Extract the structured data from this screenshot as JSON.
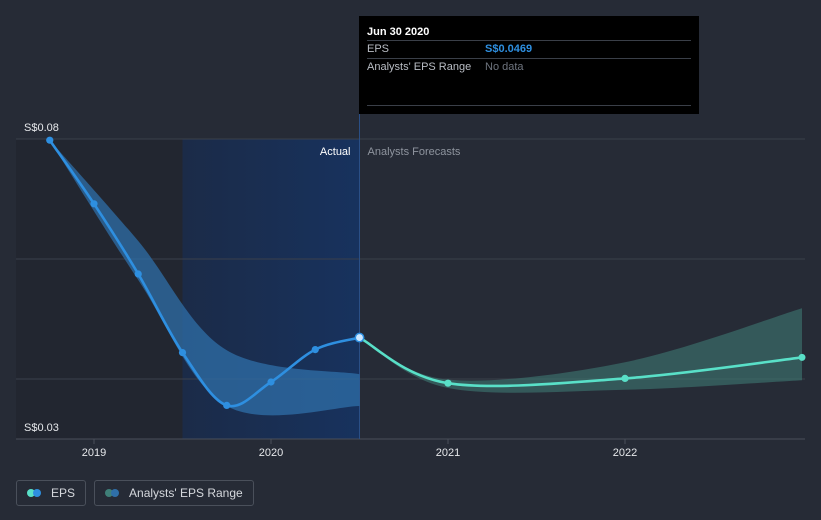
{
  "chart_data": {
    "type": "line",
    "y_axis": {
      "ylim": [
        0.03,
        0.08
      ],
      "tick_labels": [
        "S$0.08",
        "S$0.03"
      ]
    },
    "x_axis": {
      "tick_labels": [
        "2019",
        "2020",
        "2021",
        "2022"
      ]
    },
    "region_labels": {
      "actual": "Actual",
      "forecast": "Analysts Forecasts"
    },
    "series": [
      {
        "name": "EPS (actual)",
        "color": "#2e8fe0",
        "points": [
          {
            "x": 2018.75,
            "y": 0.0798
          },
          {
            "x": 2019.0,
            "y": 0.0692
          },
          {
            "x": 2019.25,
            "y": 0.0575
          },
          {
            "x": 2019.5,
            "y": 0.0444
          },
          {
            "x": 2019.75,
            "y": 0.0356
          },
          {
            "x": 2020.0,
            "y": 0.0395
          },
          {
            "x": 2020.25,
            "y": 0.0449
          },
          {
            "x": 2020.5,
            "y": 0.0469
          }
        ]
      },
      {
        "name": "EPS (forecast)",
        "color": "#59e0c8",
        "points": [
          {
            "x": 2020.5,
            "y": 0.0469
          },
          {
            "x": 2021.0,
            "y": 0.0393
          },
          {
            "x": 2022.0,
            "y": 0.0401
          },
          {
            "x": 2023.0,
            "y": 0.0436
          }
        ]
      }
    ],
    "historical_range": {
      "color": "#2f6fa8",
      "upper": [
        {
          "x": 2018.75,
          "y": 0.0798
        },
        {
          "x": 2019.25,
          "y": 0.063
        },
        {
          "x": 2019.75,
          "y": 0.0448
        },
        {
          "x": 2020.5,
          "y": 0.0408
        }
      ],
      "lower": [
        {
          "x": 2018.75,
          "y": 0.0798
        },
        {
          "x": 2019.25,
          "y": 0.0565
        },
        {
          "x": 2019.75,
          "y": 0.0355
        },
        {
          "x": 2020.5,
          "y": 0.0355
        }
      ]
    },
    "forecast_range": {
      "color": "#3f7f78",
      "upper": [
        {
          "x": 2020.5,
          "y": 0.0469
        },
        {
          "x": 2021.0,
          "y": 0.0399
        },
        {
          "x": 2022.0,
          "y": 0.0428
        },
        {
          "x": 2023.0,
          "y": 0.0518
        }
      ],
      "lower": [
        {
          "x": 2020.5,
          "y": 0.0469
        },
        {
          "x": 2021.0,
          "y": 0.0385
        },
        {
          "x": 2022.0,
          "y": 0.0382
        },
        {
          "x": 2023.0,
          "y": 0.0398
        }
      ]
    },
    "tooltip": {
      "date": "Jun 30 2020",
      "rows": [
        {
          "label": "EPS",
          "value": "S$0.0469"
        },
        {
          "label": "Analysts' EPS Range",
          "value": "No data"
        }
      ]
    },
    "legend": [
      {
        "label": "EPS",
        "colors": [
          "#59e0c8",
          "#2e8fe0"
        ]
      },
      {
        "label": "Analysts' EPS Range",
        "colors": [
          "#3f7f78",
          "#2f6fa8"
        ]
      }
    ]
  }
}
